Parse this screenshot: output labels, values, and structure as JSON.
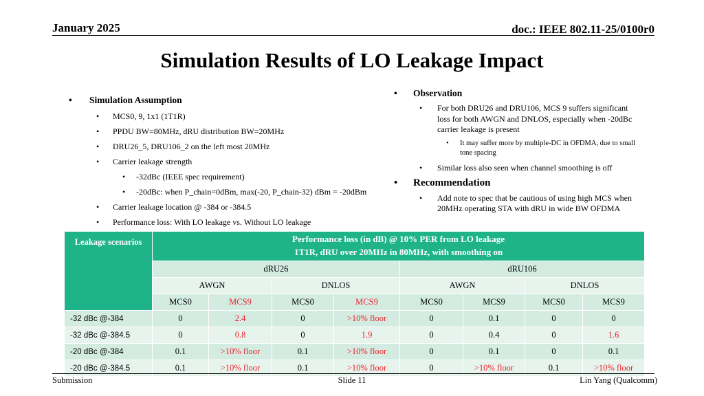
{
  "header": {
    "date": "January 2025",
    "doc": "doc.: IEEE 802.11-25/0100r0"
  },
  "title": "Simulation Results of LO Leakage Impact",
  "left": {
    "heading": "Simulation Assumption",
    "items": [
      "MCS0, 9, 1x1 (1T1R)",
      "PPDU BW=80MHz, dRU distribution BW=20MHz",
      "DRU26_5, DRU106_2 on the left most 20MHz",
      "Carrier leakage strength"
    ],
    "sub": [
      "-32dBc (IEEE spec requirement)",
      "-20dBc: when P_chain=0dBm, max(-20, P_chain-32) dBm = -20dBm"
    ],
    "items2": [
      "Carrier leakage location @ -384 or -384.5",
      "Performance loss: With LO leakage vs. Without LO leakage"
    ]
  },
  "right": {
    "observation": "Observation",
    "obs1": "For both DRU26 and DRU106, MCS 9 suffers significant loss for both AWGN and DNLOS, especially when -20dBc carrier leakage is present",
    "obs1_sub": "It may suffer more by multiple-DC in OFDMA, due to small tone spacing",
    "obs2": "Similar loss also seen when channel smoothing is off",
    "recommendation": "Recommendation",
    "rec1": "Add note to spec that be cautious of using high MCS when 20MHz operating STA with dRU in wide BW OFDMA"
  },
  "table": {
    "corner": "Leakage scenarios",
    "top_line1": "Performance loss (in dB) @ 10% PER from LO leakage",
    "top_line2": "1T1R, dRU over 20MHz in 80MHz, with smoothing on",
    "groups": [
      "dRU26",
      "dRU106"
    ],
    "channels": [
      "AWGN",
      "DNLOS",
      "AWGN",
      "DNLOS"
    ],
    "mcs": [
      "MCS0",
      "MCS9",
      "MCS0",
      "MCS9",
      "MCS0",
      "MCS9",
      "MCS0",
      "MCS9"
    ],
    "rows": [
      {
        "label": "-32 dBc @-384",
        "cells": [
          "0",
          "2.4",
          "0",
          ">10% floor",
          "0",
          "0.1",
          "0",
          "0"
        ]
      },
      {
        "label": "-32 dBc @-384.5",
        "cells": [
          "0",
          "0.8",
          "0",
          "1.9",
          "0",
          "0.4",
          "0",
          "1.6"
        ]
      },
      {
        "label": "-20 dBc @-384",
        "cells": [
          "0.1",
          ">10% floor",
          "0.1",
          ">10% floor",
          "0",
          "0.1",
          "0",
          "0.1"
        ]
      },
      {
        "label": "-20 dBc @-384.5",
        "cells": [
          "0.1",
          ">10% floor",
          "0.1",
          ">10% floor",
          "0",
          ">10% floor",
          "0.1",
          ">10% floor"
        ]
      }
    ]
  },
  "footer": {
    "left": "Submission",
    "center": "Slide 11",
    "right": "Lin Yang (Qualcomm)"
  },
  "colors": {
    "accent": "#1fb38a",
    "highlight": "#e8242c"
  }
}
